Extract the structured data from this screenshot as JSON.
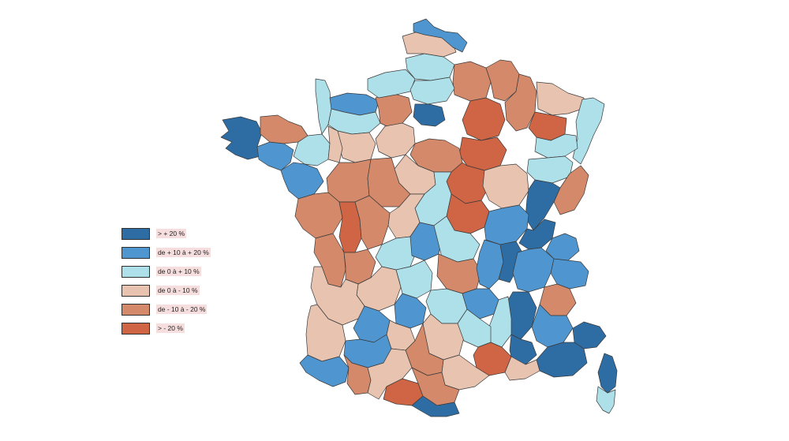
{
  "legend": {
    "items": [
      {
        "label": "> + 20  %",
        "color": "#2e6da4"
      },
      {
        "label": "de + 10 à + 20 %",
        "color": "#4f96d0"
      },
      {
        "label": "de  0 à + 10 %",
        "color": "#aee0ea"
      },
      {
        "label": "de 0 à - 10 %",
        "color": "#e7c3b0"
      },
      {
        "label": "de - 10 à - 20 %",
        "color": "#d48a6a"
      },
      {
        "label": "> - 20  %",
        "color": "#cf6544"
      }
    ]
  },
  "map": {
    "departments": [
      {
        "id": "bretagne-finistere",
        "class": 0
      },
      {
        "id": "bretagne-morbihan",
        "class": 1
      },
      {
        "id": "bretagne-cotes",
        "class": 4
      },
      {
        "id": "ille",
        "class": 2
      },
      {
        "id": "loire-atl",
        "class": 1
      },
      {
        "id": "manche",
        "class": 2
      },
      {
        "id": "calvados",
        "class": 1
      },
      {
        "id": "orne",
        "class": 2
      },
      {
        "id": "eure",
        "class": 4
      },
      {
        "id": "seine-mar",
        "class": 2
      },
      {
        "id": "somme",
        "class": 2
      },
      {
        "id": "pas-de-calais",
        "class": 3
      },
      {
        "id": "nord",
        "class": 1
      },
      {
        "id": "aisne",
        "class": 4
      },
      {
        "id": "oise",
        "class": 2
      },
      {
        "id": "paris",
        "class": 0
      },
      {
        "id": "marne",
        "class": 5
      },
      {
        "id": "ardennes",
        "class": 4
      },
      {
        "id": "meuse",
        "class": 4
      },
      {
        "id": "moselle",
        "class": 3
      },
      {
        "id": "alsace",
        "class": 2
      },
      {
        "id": "vosges",
        "class": 2
      },
      {
        "id": "meurthe",
        "class": 5
      },
      {
        "id": "aube",
        "class": 5
      },
      {
        "id": "yonne",
        "class": 5
      },
      {
        "id": "cote-or",
        "class": 3
      },
      {
        "id": "haute-saone",
        "class": 2
      },
      {
        "id": "doubs",
        "class": 4
      },
      {
        "id": "jura",
        "class": 0
      },
      {
        "id": "ain",
        "class": 0
      },
      {
        "id": "nievre",
        "class": 5
      },
      {
        "id": "saone-loire",
        "class": 1
      },
      {
        "id": "loiret",
        "class": 4
      },
      {
        "id": "eure-loir",
        "class": 3
      },
      {
        "id": "sarthe",
        "class": 3
      },
      {
        "id": "mayenne",
        "class": 3
      },
      {
        "id": "maine-loire",
        "class": 4
      },
      {
        "id": "indre-loire",
        "class": 4
      },
      {
        "id": "loir-cher",
        "class": 3
      },
      {
        "id": "cher",
        "class": 2
      },
      {
        "id": "indre",
        "class": 3
      },
      {
        "id": "vendee",
        "class": 4
      },
      {
        "id": "deux-sevres",
        "class": 5
      },
      {
        "id": "vienne",
        "class": 4
      },
      {
        "id": "charente-mar",
        "class": 4
      },
      {
        "id": "charente",
        "class": 4
      },
      {
        "id": "haute-vienne",
        "class": 2
      },
      {
        "id": "creuse",
        "class": 1
      },
      {
        "id": "allier",
        "class": 2
      },
      {
        "id": "puy-dome",
        "class": 4
      },
      {
        "id": "loire",
        "class": 1
      },
      {
        "id": "rhone",
        "class": 0
      },
      {
        "id": "savoie",
        "class": 1
      },
      {
        "id": "haute-savoie",
        "class": 1
      },
      {
        "id": "isere",
        "class": 1
      },
      {
        "id": "drome",
        "class": 0
      },
      {
        "id": "hautes-alpes",
        "class": 4
      },
      {
        "id": "dordogne",
        "class": 3
      },
      {
        "id": "correze",
        "class": 2
      },
      {
        "id": "cantal",
        "class": 2
      },
      {
        "id": "haute-loire",
        "class": 1
      },
      {
        "id": "ardeche",
        "class": 2
      },
      {
        "id": "gironde",
        "class": 3
      },
      {
        "id": "landes",
        "class": 3
      },
      {
        "id": "lot",
        "class": 1
      },
      {
        "id": "aveyron",
        "class": 3
      },
      {
        "id": "lozere",
        "class": 2
      },
      {
        "id": "gard",
        "class": 5
      },
      {
        "id": "vaucluse",
        "class": 0
      },
      {
        "id": "alpes-hp",
        "class": 1
      },
      {
        "id": "alpes-mar",
        "class": 0
      },
      {
        "id": "var",
        "class": 0
      },
      {
        "id": "bouches-rhone",
        "class": 3
      },
      {
        "id": "herault",
        "class": 3
      },
      {
        "id": "tarn",
        "class": 4
      },
      {
        "id": "tarn-garonne",
        "class": 3
      },
      {
        "id": "lot-garonne",
        "class": 1
      },
      {
        "id": "gers",
        "class": 1
      },
      {
        "id": "pyr-atl",
        "class": 1
      },
      {
        "id": "hautes-pyr",
        "class": 4
      },
      {
        "id": "haute-garonne",
        "class": 3
      },
      {
        "id": "ariege",
        "class": 5
      },
      {
        "id": "aude",
        "class": 4
      },
      {
        "id": "pyr-or",
        "class": 0
      },
      {
        "id": "corse-sud",
        "class": 2
      },
      {
        "id": "haute-corse",
        "class": 0
      }
    ]
  }
}
